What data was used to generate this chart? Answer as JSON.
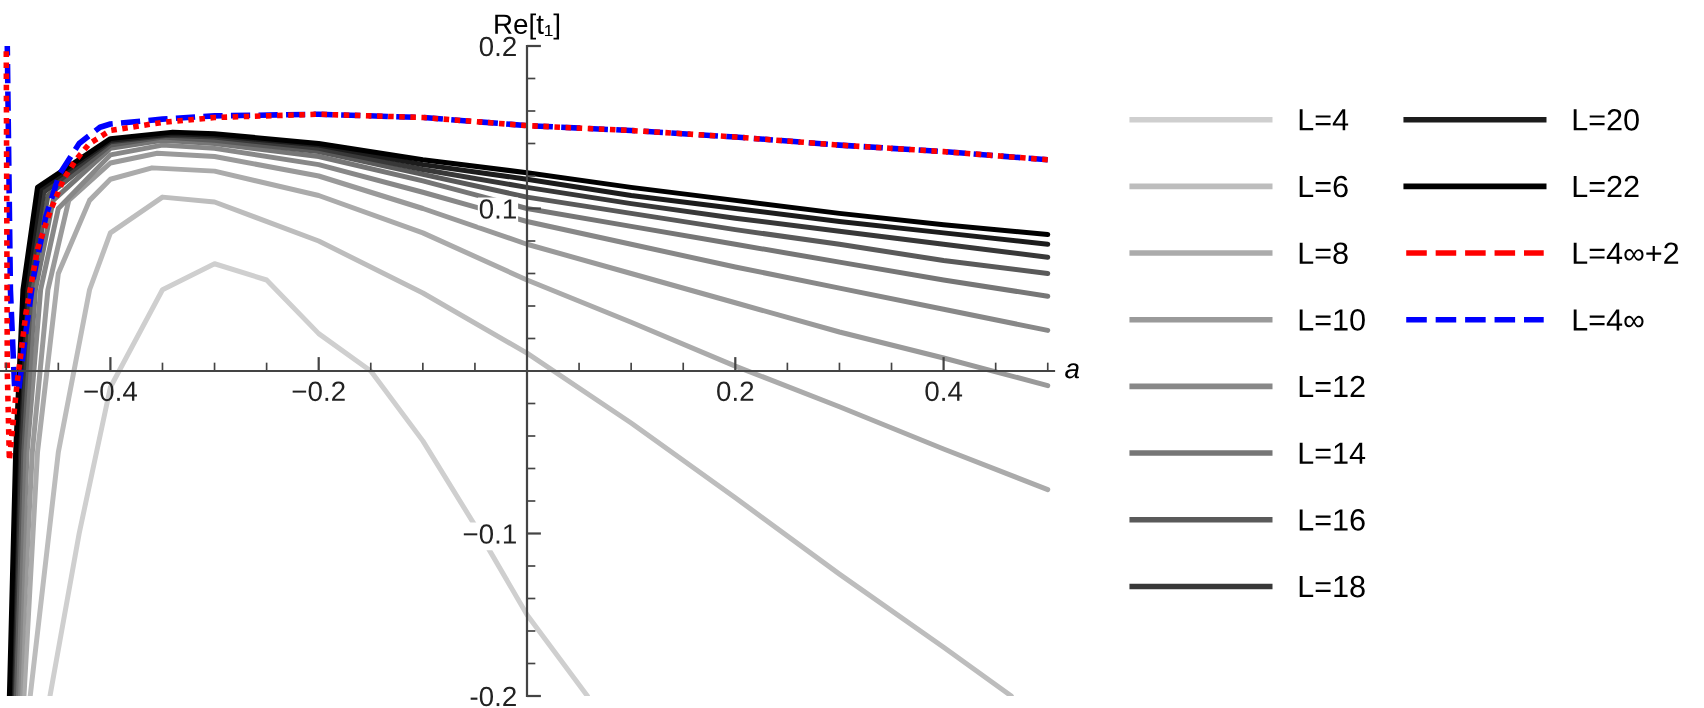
{
  "chart_data": {
    "type": "line",
    "xlabel": "a",
    "ylabel": "Re[t₁]",
    "xlim": [
      -0.506,
      0.506
    ],
    "ylim": [
      -0.2,
      0.2
    ],
    "xticks": [
      {
        "value": -0.5,
        "label": null
      },
      {
        "value": -0.45,
        "label": null
      },
      {
        "value": -0.4,
        "label": "−0.4"
      },
      {
        "value": -0.35,
        "label": null
      },
      {
        "value": -0.3,
        "label": null
      },
      {
        "value": -0.25,
        "label": null
      },
      {
        "value": -0.2,
        "label": "−0.2"
      },
      {
        "value": -0.15,
        "label": null
      },
      {
        "value": -0.1,
        "label": null
      },
      {
        "value": -0.05,
        "label": null
      },
      {
        "value": 0.05,
        "label": null
      },
      {
        "value": 0.1,
        "label": null
      },
      {
        "value": 0.15,
        "label": null
      },
      0.2,
      {
        "value": 0.25,
        "label": null
      },
      {
        "value": 0.3,
        "label": null
      },
      {
        "value": 0.35,
        "label": null
      },
      0.4,
      {
        "value": 0.45,
        "label": null
      },
      {
        "value": 0.5,
        "label": null
      }
    ],
    "yticks": [
      -0.2,
      {
        "value": -0.18,
        "label": null
      },
      {
        "value": -0.16,
        "label": null
      },
      {
        "value": -0.14,
        "label": null
      },
      {
        "value": -0.12,
        "label": null
      },
      {
        "value": -0.1,
        "label": "−0.1"
      },
      {
        "value": -0.08,
        "label": null
      },
      {
        "value": -0.06,
        "label": null
      },
      {
        "value": -0.04,
        "label": null
      },
      {
        "value": -0.02,
        "label": null
      },
      {
        "value": 0.02,
        "label": null
      },
      {
        "value": 0.04,
        "label": null
      },
      {
        "value": 0.06,
        "label": null
      },
      {
        "value": 0.08,
        "label": null
      },
      0.1,
      {
        "value": 0.12,
        "label": null
      },
      {
        "value": 0.14,
        "label": null
      },
      {
        "value": 0.16,
        "label": null
      },
      {
        "value": 0.18,
        "label": null
      },
      0.2
    ],
    "grid": false,
    "legend": "right",
    "marker": "none",
    "series": [
      {
        "name": "L=4",
        "color": "#cfcfcf",
        "line_style": "solid",
        "x": [
          -0.458,
          -0.43,
          -0.4,
          -0.35,
          -0.3,
          -0.25,
          -0.2,
          -0.15,
          -0.1,
          -0.05,
          0,
          0.058
        ],
        "values": [
          -0.2,
          -0.1,
          -0.01,
          0.05,
          0.066,
          0.056,
          0.023,
          0.0,
          -0.043,
          -0.095,
          -0.15,
          -0.2
        ]
      },
      {
        "name": "L=6",
        "color": "#bdbdbd",
        "line_style": "solid",
        "x": [
          -0.477,
          -0.45,
          -0.42,
          -0.4,
          -0.35,
          -0.3,
          -0.2,
          -0.1,
          0,
          0.1,
          0.2,
          0.3,
          0.4,
          0.465
        ],
        "values": [
          -0.2,
          -0.05,
          0.05,
          0.085,
          0.107,
          0.104,
          0.08,
          0.048,
          0.011,
          -0.032,
          -0.078,
          -0.125,
          -0.17,
          -0.2
        ]
      },
      {
        "name": "L=8",
        "color": "#ababab",
        "line_style": "solid",
        "x": [
          -0.483,
          -0.47,
          -0.45,
          -0.42,
          -0.4,
          -0.36,
          -0.3,
          -0.2,
          -0.1,
          0,
          0.1,
          0.2,
          0.3,
          0.4,
          0.5
        ],
        "values": [
          -0.2,
          -0.05,
          0.06,
          0.105,
          0.118,
          0.125,
          0.123,
          0.108,
          0.085,
          0.056,
          0.03,
          0.003,
          -0.022,
          -0.048,
          -0.073
        ]
      },
      {
        "name": "L=10",
        "color": "#9a9a9a",
        "line_style": "solid",
        "x": [
          -0.487,
          -0.475,
          -0.46,
          -0.44,
          -0.4,
          -0.355,
          -0.3,
          -0.2,
          -0.1,
          0,
          0.1,
          0.2,
          0.3,
          0.4,
          0.5
        ],
        "values": [
          -0.2,
          -0.05,
          0.05,
          0.105,
          0.128,
          0.134,
          0.132,
          0.12,
          0.1,
          0.078,
          0.06,
          0.042,
          0.024,
          0.008,
          -0.009
        ]
      },
      {
        "name": "L=12",
        "color": "#888888",
        "line_style": "solid",
        "x": [
          -0.489,
          -0.48,
          -0.467,
          -0.45,
          -0.4,
          -0.35,
          -0.3,
          -0.2,
          -0.1,
          0,
          0.1,
          0.2,
          0.3,
          0.4,
          0.5
        ],
        "values": [
          -0.2,
          -0.05,
          0.05,
          0.1,
          0.133,
          0.139,
          0.137,
          0.127,
          0.11,
          0.092,
          0.078,
          0.064,
          0.051,
          0.038,
          0.025
        ]
      },
      {
        "name": "L=14",
        "color": "#767676",
        "line_style": "solid",
        "x": [
          -0.491,
          -0.483,
          -0.472,
          -0.455,
          -0.4,
          -0.35,
          -0.3,
          -0.2,
          -0.1,
          0,
          0.1,
          0.2,
          0.3,
          0.4,
          0.5
        ],
        "values": [
          -0.2,
          -0.05,
          0.05,
          0.105,
          0.137,
          0.142,
          0.14,
          0.132,
          0.117,
          0.1,
          0.089,
          0.078,
          0.067,
          0.056,
          0.046
        ]
      },
      {
        "name": "L=16",
        "color": "#5a5a5a",
        "line_style": "solid",
        "x": [
          -0.493,
          -0.486,
          -0.476,
          -0.46,
          -0.4,
          -0.35,
          -0.3,
          -0.2,
          -0.1,
          0,
          0.1,
          0.2,
          0.3,
          0.4,
          0.5
        ],
        "values": [
          -0.2,
          -0.05,
          0.05,
          0.108,
          0.139,
          0.144,
          0.142,
          0.135,
          0.121,
          0.107,
          0.097,
          0.087,
          0.078,
          0.068,
          0.06
        ]
      },
      {
        "name": "L=18",
        "color": "#383838",
        "line_style": "solid",
        "x": [
          -0.495,
          -0.488,
          -0.479,
          -0.464,
          -0.4,
          -0.345,
          -0.3,
          -0.2,
          -0.1,
          0,
          0.1,
          0.2,
          0.3,
          0.4,
          0.5
        ],
        "values": [
          -0.2,
          -0.05,
          0.05,
          0.11,
          0.141,
          0.145,
          0.144,
          0.137,
          0.124,
          0.113,
          0.103,
          0.094,
          0.086,
          0.078,
          0.07
        ]
      },
      {
        "name": "L=20",
        "color": "#1c1c1c",
        "line_style": "solid",
        "x": [
          -0.496,
          -0.49,
          -0.482,
          -0.467,
          -0.4,
          -0.34,
          -0.3,
          -0.2,
          -0.1,
          0,
          0.1,
          0.2,
          0.3,
          0.4,
          0.5
        ],
        "values": [
          -0.2,
          -0.05,
          0.05,
          0.112,
          0.142,
          0.146,
          0.145,
          0.139,
          0.127,
          0.118,
          0.108,
          0.1,
          0.092,
          0.085,
          0.078
        ]
      },
      {
        "name": "L=22",
        "color": "#000000",
        "line_style": "solid",
        "x": [
          -0.497,
          -0.491,
          -0.484,
          -0.47,
          -0.4,
          -0.34,
          -0.3,
          -0.2,
          -0.1,
          0,
          0.1,
          0.2,
          0.3,
          0.4,
          0.5
        ],
        "values": [
          -0.2,
          -0.05,
          0.05,
          0.113,
          0.143,
          0.147,
          0.146,
          0.14,
          0.13,
          0.122,
          0.113,
          0.105,
          0.097,
          0.09,
          0.084
        ]
      },
      {
        "name": "L=4∞+2",
        "color": "#ff0000",
        "line_style": "dotted",
        "x": [
          -0.5,
          -0.499,
          -0.497,
          -0.49,
          -0.481,
          -0.47,
          -0.458,
          -0.445,
          -0.433,
          -0.42,
          -0.4,
          -0.35,
          -0.3,
          -0.2,
          -0.1,
          0,
          0.1,
          0.2,
          0.3,
          0.4,
          0.5
        ],
        "values": [
          0.2,
          0.0,
          -0.055,
          -0.01,
          0.036,
          0.075,
          0.098,
          0.118,
          0.13,
          0.14,
          0.148,
          0.153,
          0.156,
          0.158,
          0.156,
          0.151,
          0.148,
          0.144,
          0.139,
          0.135,
          0.13
        ]
      },
      {
        "name": "L=4∞",
        "color": "#0000ff",
        "line_style": "dashed",
        "x": [
          -0.499,
          -0.496,
          -0.492,
          -0.488,
          -0.482,
          -0.474,
          -0.462,
          -0.449,
          -0.43,
          -0.41,
          -0.4,
          -0.35,
          -0.3,
          -0.2,
          -0.1,
          0,
          0.1,
          0.2,
          0.3,
          0.4,
          0.5
        ],
        "values": [
          0.2,
          0.05,
          -0.01,
          -0.012,
          0.02,
          0.057,
          0.095,
          0.121,
          0.14,
          0.15,
          0.152,
          0.155,
          0.157,
          0.158,
          0.156,
          0.151,
          0.148,
          0.144,
          0.139,
          0.135,
          0.13
        ]
      }
    ]
  }
}
